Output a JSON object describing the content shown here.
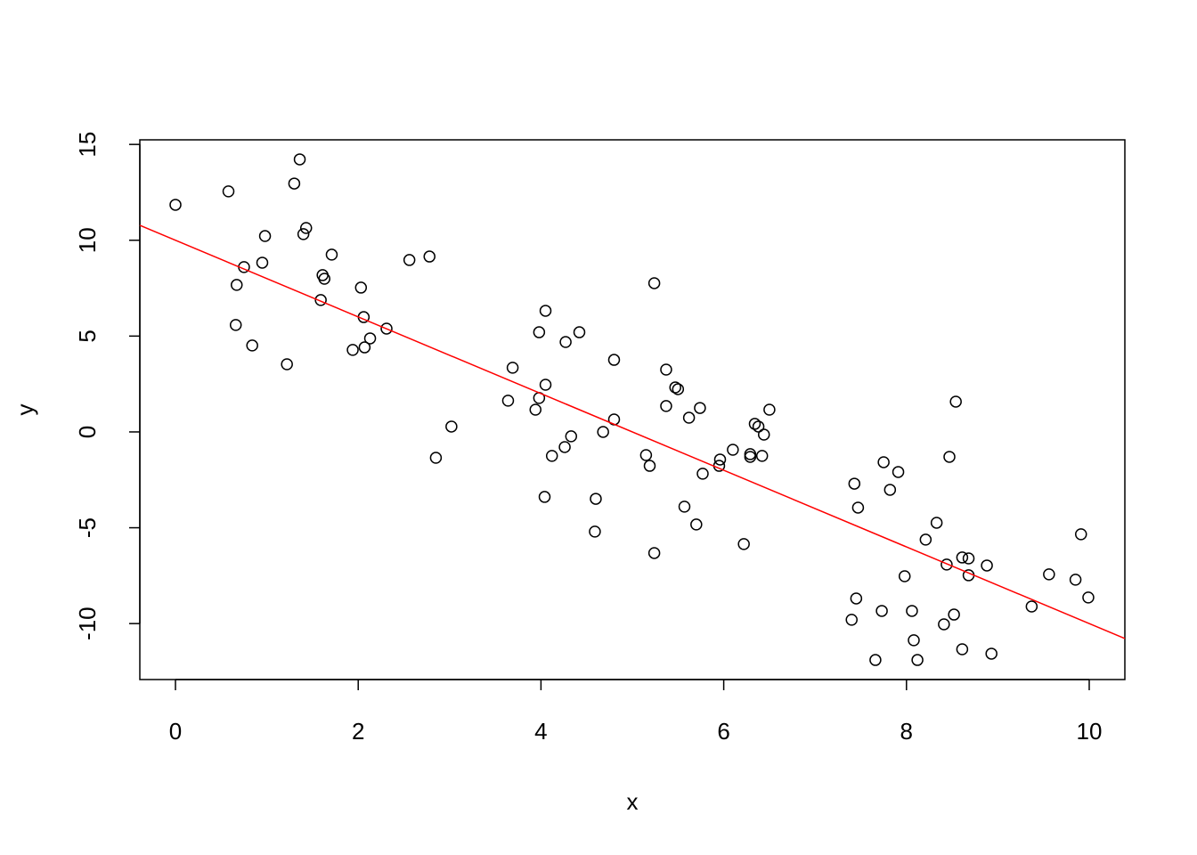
{
  "chart_data": {
    "type": "scatter",
    "x_label": "x",
    "y_label": "y",
    "xlim": [
      -0.39,
      10.39
    ],
    "ylim": [
      -12.92,
      15.24
    ],
    "xticks": [
      0,
      2,
      4,
      6,
      8,
      10
    ],
    "yticks": [
      -10,
      -5,
      0,
      5,
      10,
      15
    ],
    "grid": false,
    "point_color": "#000000",
    "line": {
      "intercept": 10.0,
      "slope": -2.0,
      "color": "#ff0000"
    },
    "x": [
      0.0,
      0.58,
      1.36,
      1.3,
      1.43,
      1.4,
      0.98,
      0.95,
      0.75,
      0.67,
      1.71,
      1.61,
      1.63,
      1.59,
      2.03,
      2.06,
      0.66,
      0.84,
      1.22,
      1.94,
      2.07,
      2.13,
      2.31,
      2.56,
      2.78,
      2.85,
      3.02,
      3.64,
      3.69,
      3.94,
      3.98,
      4.05,
      3.98,
      4.05,
      4.27,
      4.42,
      4.33,
      4.26,
      4.12,
      4.04,
      4.6,
      4.59,
      4.68,
      4.8,
      4.8,
      5.24,
      5.15,
      5.19,
      5.24,
      5.37,
      5.47,
      5.5,
      5.37,
      5.62,
      5.74,
      5.57,
      5.7,
      5.77,
      5.96,
      5.95,
      6.1,
      6.22,
      6.29,
      6.29,
      6.34,
      6.38,
      6.42,
      6.44,
      6.5,
      7.43,
      7.47,
      7.4,
      7.45,
      7.73,
      7.66,
      7.75,
      7.82,
      7.91,
      7.98,
      8.06,
      8.08,
      8.12,
      8.21,
      8.33,
      8.41,
      8.44,
      8.47,
      8.54,
      8.52,
      8.61,
      8.68,
      8.68,
      8.61,
      8.88,
      8.93,
      9.37,
      9.56,
      9.85,
      9.91,
      9.99
    ],
    "values": [
      11.85,
      12.55,
      14.22,
      12.96,
      10.64,
      10.32,
      10.22,
      8.83,
      8.6,
      7.67,
      9.25,
      8.18,
      7.99,
      6.88,
      7.53,
      5.99,
      5.58,
      4.51,
      3.53,
      4.28,
      4.41,
      4.88,
      5.39,
      8.97,
      9.15,
      -1.35,
      0.28,
      1.63,
      3.35,
      1.16,
      1.77,
      2.46,
      5.2,
      6.32,
      4.69,
      5.2,
      -0.23,
      -0.79,
      -1.25,
      -3.39,
      -3.49,
      -5.2,
      0.0,
      0.65,
      3.76,
      7.76,
      -1.21,
      -1.77,
      -6.32,
      3.25,
      2.32,
      2.23,
      1.35,
      0.74,
      1.25,
      -3.9,
      -4.83,
      -2.18,
      -1.44,
      -1.77,
      -0.93,
      -5.85,
      -1.16,
      -1.3,
      0.42,
      0.28,
      -1.25,
      -0.14,
      1.16,
      -2.7,
      -3.95,
      -9.8,
      -8.69,
      -9.34,
      -11.9,
      -1.58,
      -3.02,
      -2.09,
      -7.53,
      -9.34,
      -10.87,
      -11.9,
      -5.62,
      -4.74,
      -10.04,
      -6.92,
      -1.3,
      1.58,
      -9.53,
      -6.55,
      -6.6,
      -7.48,
      -11.34,
      -6.97,
      -11.57,
      -9.11,
      -7.43,
      -7.71,
      -5.34,
      -8.64
    ]
  }
}
